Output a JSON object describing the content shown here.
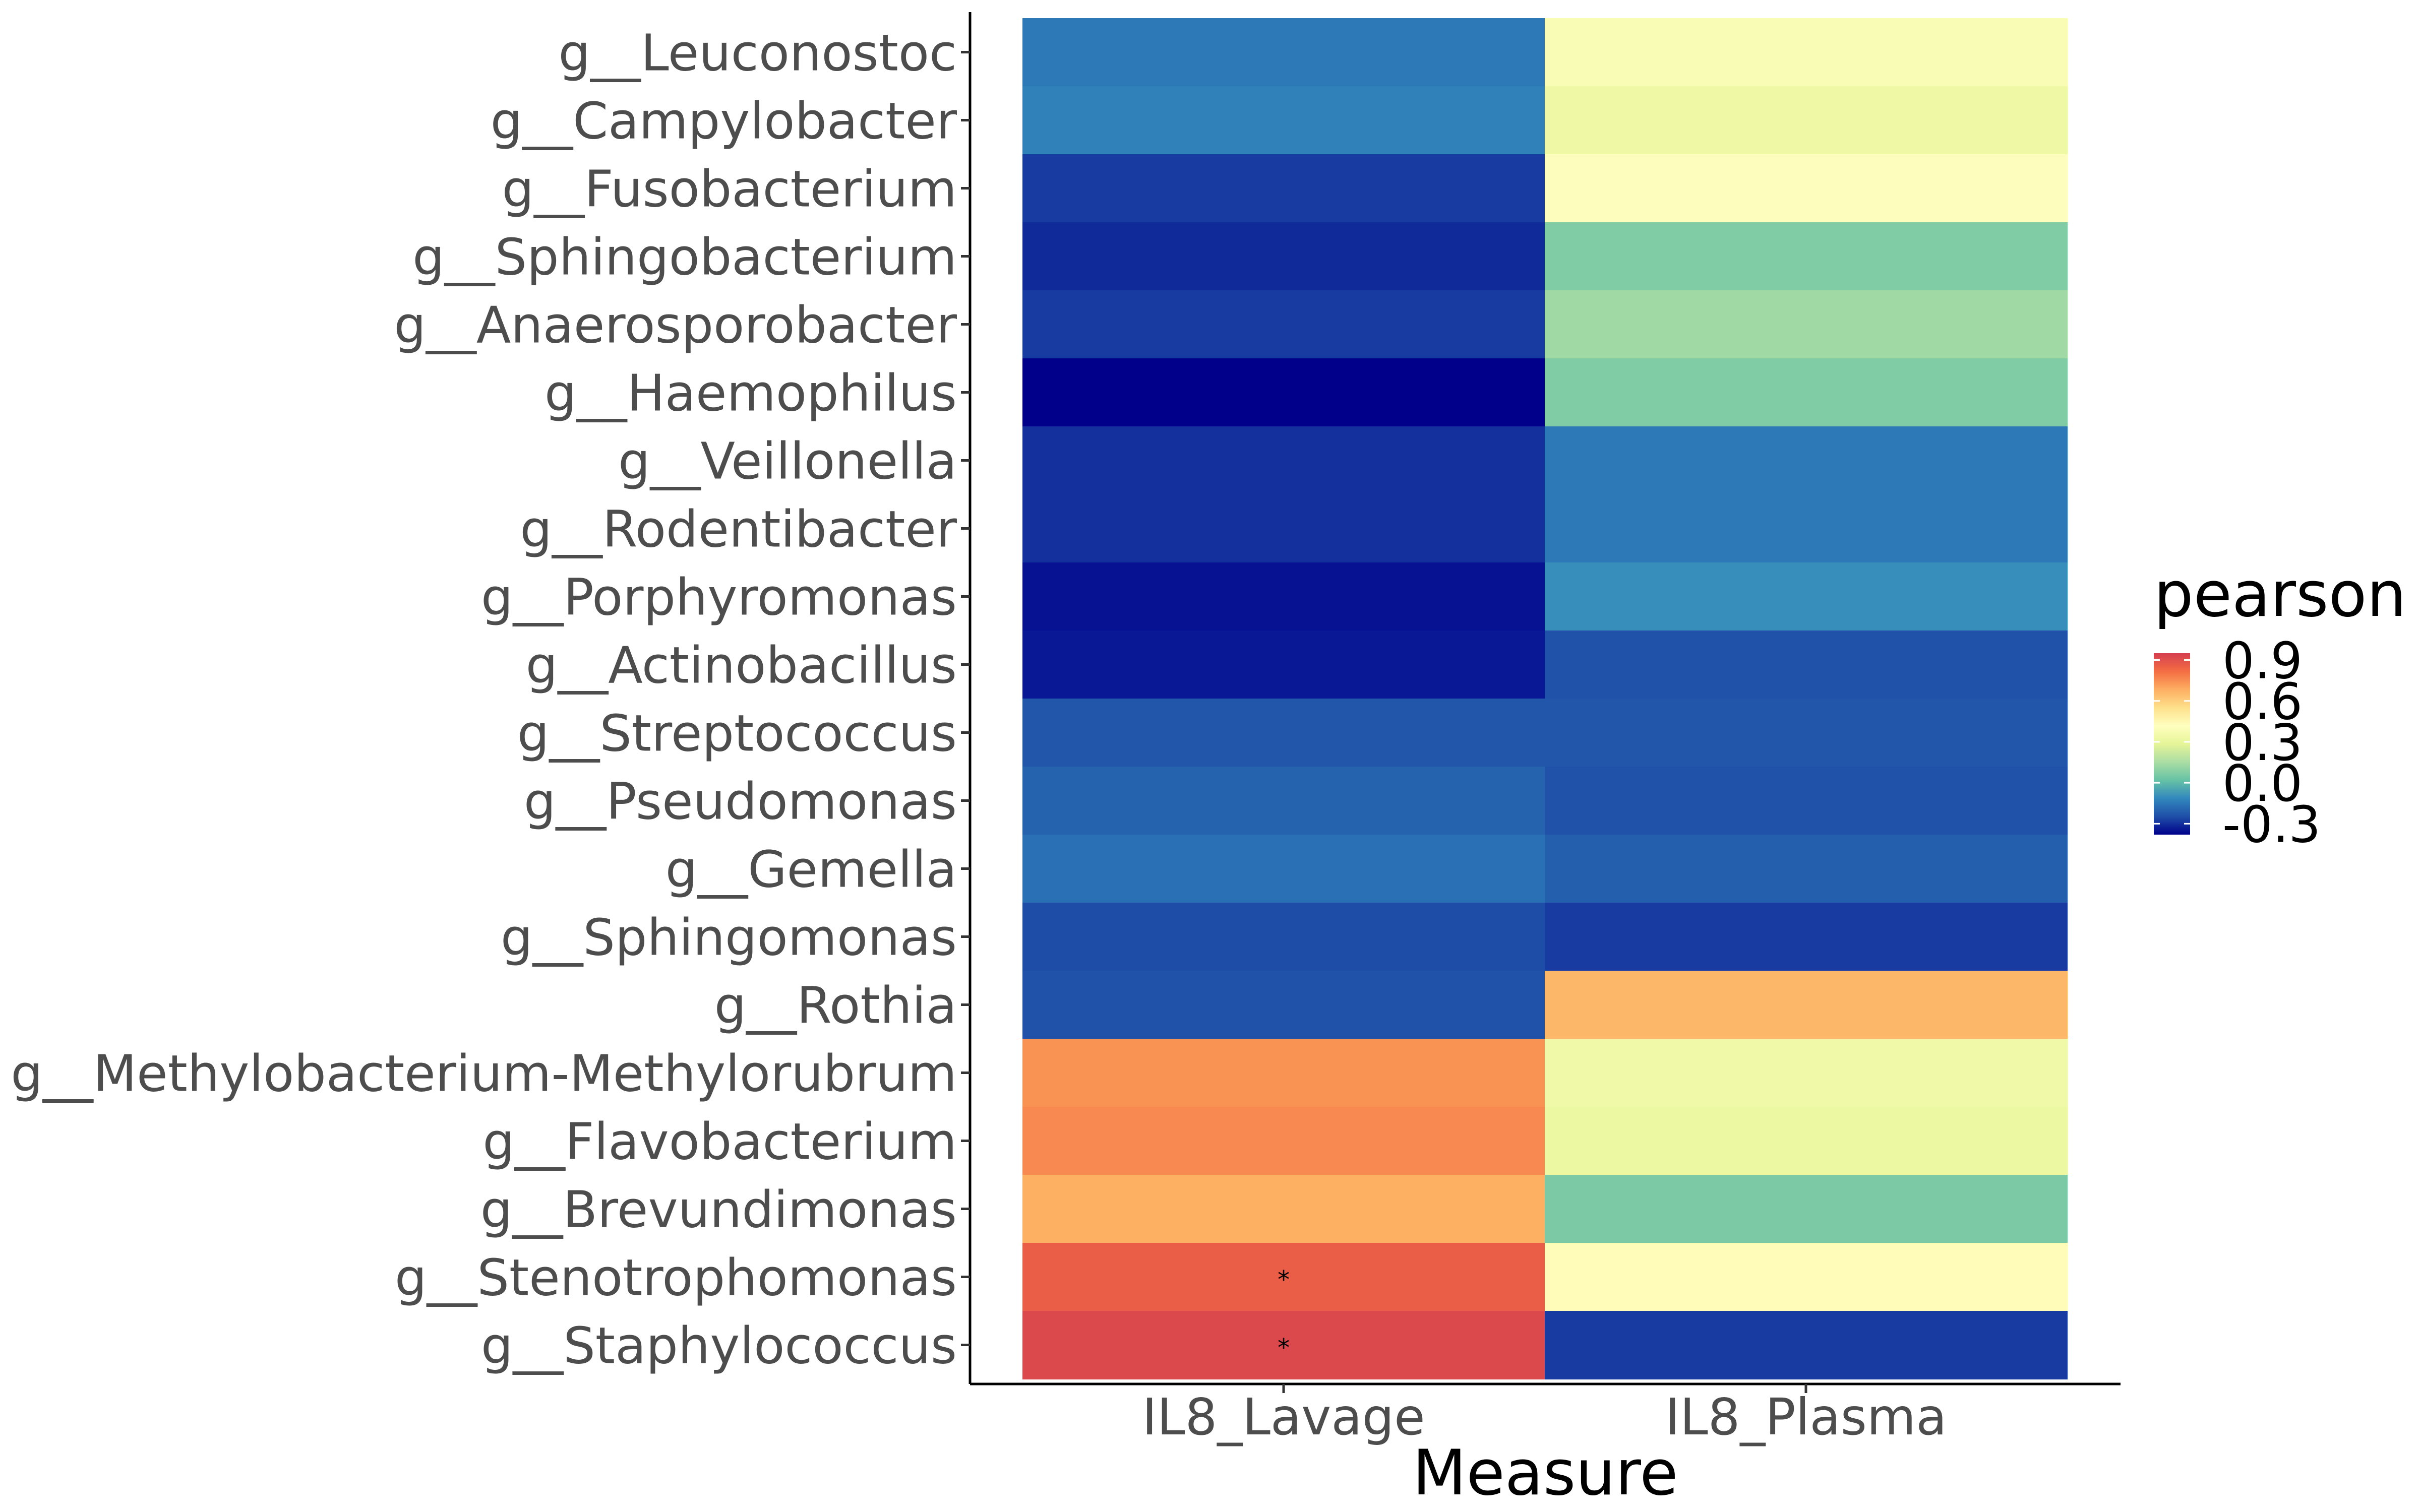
{
  "chart_data": {
    "type": "heatmap",
    "xlabel": "Measure",
    "ylabel": "",
    "x_categories": [
      "IL8_Lavage",
      "IL8_Plasma"
    ],
    "y_categories": [
      "g__Leuconostoc",
      "g__Campylobacter",
      "g__Fusobacterium",
      "g__Sphingobacterium",
      "g__Anaerosporobacter",
      "g__Haemophilus",
      "g__Veillonella",
      "g__Rodentibacter",
      "g__Porphyromonas",
      "g__Actinobacillus",
      "g__Streptococcus",
      "g__Pseudomonas",
      "g__Gemella",
      "g__Sphingomonas",
      "g__Rothia",
      "g__Methylobacterium-Methylorubrum",
      "g__Flavobacterium",
      "g__Brevundimonas",
      "g__Stenotrophomonas",
      "g__Staphylococcus"
    ],
    "values": [
      [
        -0.15,
        0.38
      ],
      [
        -0.13,
        0.33
      ],
      [
        -0.28,
        0.41
      ],
      [
        -0.31,
        0.07
      ],
      [
        -0.28,
        0.13
      ],
      [
        -0.38,
        0.07
      ],
      [
        -0.3,
        -0.15
      ],
      [
        -0.3,
        -0.15
      ],
      [
        -0.35,
        -0.1
      ],
      [
        -0.34,
        -0.24
      ],
      [
        -0.23,
        -0.23
      ],
      [
        -0.2,
        -0.24
      ],
      [
        -0.17,
        -0.21
      ],
      [
        -0.25,
        -0.28
      ],
      [
        -0.24,
        0.66
      ],
      [
        0.74,
        0.34
      ],
      [
        0.76,
        0.32
      ],
      [
        0.68,
        0.06
      ],
      [
        0.86,
        0.43
      ],
      [
        0.92,
        -0.28
      ]
    ],
    "annotations": [
      {
        "row": "g__Stenotrophomonas",
        "column": "IL8_Lavage",
        "text": "*"
      },
      {
        "row": "g__Staphylococcus",
        "column": "IL8_Lavage",
        "text": "*"
      }
    ],
    "legend": {
      "title": "pearson",
      "placement": "right",
      "breaks": [
        "0.9",
        "0.6",
        "0.3",
        "0.0",
        "-0.3"
      ],
      "limits": [
        -0.38,
        0.95
      ],
      "colormap": [
        "#00008B",
        "#1F4FA8",
        "#3288BD",
        "#66C2A5",
        "#ABDDA4",
        "#E6F598",
        "#FFFFBF",
        "#FEE08B",
        "#FDAE61",
        "#F46D43",
        "#D53E4F"
      ]
    },
    "grid": false
  }
}
